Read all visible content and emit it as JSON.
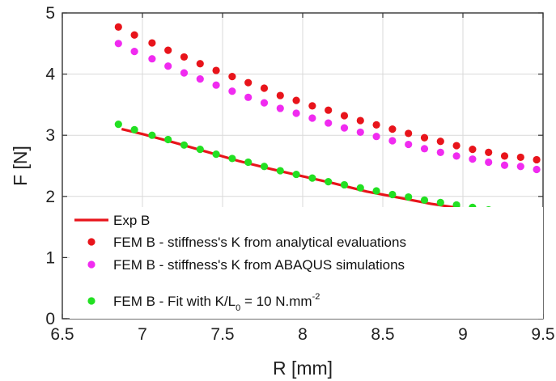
{
  "chart_data": {
    "type": "scatter",
    "xlabel": "R [mm]",
    "ylabel": "F [N]",
    "xlim": [
      6.5,
      9.5
    ],
    "ylim": [
      0,
      5
    ],
    "xticks": [
      "6.5",
      "7",
      "7.5",
      "8",
      "8.5",
      "9",
      "9.5"
    ],
    "yticks": [
      "0",
      "1",
      "2",
      "3",
      "4",
      "5"
    ],
    "grid": true,
    "legend_position": "bottom-left",
    "series": [
      {
        "name": "Exp B",
        "kind": "line",
        "color": "#e8141b",
        "x": [
          6.87,
          7.0,
          7.2,
          7.4,
          7.6,
          7.8,
          8.0,
          8.2,
          8.4,
          8.6,
          8.8,
          9.0,
          9.2,
          9.4
        ],
        "y": [
          3.1,
          3.02,
          2.88,
          2.73,
          2.58,
          2.45,
          2.33,
          2.21,
          2.08,
          1.98,
          1.88,
          1.8,
          1.72,
          1.62
        ]
      },
      {
        "name_parts": [
          "FEM B - stiffness's K from analytical evaluations"
        ],
        "kind": "points",
        "color": "#e8141b",
        "x": [
          6.85,
          6.95,
          7.06,
          7.16,
          7.26,
          7.36,
          7.46,
          7.56,
          7.66,
          7.76,
          7.86,
          7.96,
          8.06,
          8.16,
          8.26,
          8.36,
          8.46,
          8.56,
          8.66,
          8.76,
          8.86,
          8.96,
          9.06,
          9.16,
          9.26,
          9.36,
          9.46
        ],
        "y": [
          4.77,
          4.64,
          4.51,
          4.39,
          4.28,
          4.17,
          4.06,
          3.96,
          3.86,
          3.77,
          3.65,
          3.57,
          3.48,
          3.41,
          3.32,
          3.24,
          3.17,
          3.1,
          3.03,
          2.96,
          2.9,
          2.83,
          2.77,
          2.72,
          2.66,
          2.64,
          2.6
        ]
      },
      {
        "name_parts": [
          "FEM B - stiffness's K from ABAQUS simulations"
        ],
        "kind": "points",
        "color": "#f02bf0",
        "x": [
          6.85,
          6.95,
          7.06,
          7.16,
          7.26,
          7.36,
          7.46,
          7.56,
          7.66,
          7.76,
          7.86,
          7.96,
          8.06,
          8.16,
          8.26,
          8.36,
          8.46,
          8.56,
          8.66,
          8.76,
          8.86,
          8.96,
          9.06,
          9.16,
          9.26,
          9.36,
          9.46
        ],
        "y": [
          4.5,
          4.37,
          4.25,
          4.13,
          4.02,
          3.92,
          3.82,
          3.72,
          3.62,
          3.53,
          3.44,
          3.36,
          3.28,
          3.2,
          3.12,
          3.05,
          2.98,
          2.91,
          2.85,
          2.78,
          2.72,
          2.66,
          2.61,
          2.56,
          2.51,
          2.49,
          2.44
        ]
      },
      {
        "name_parts": [
          "FEM B - Fit with K/L",
          "0",
          " = 10 N.mm",
          "-2"
        ],
        "kind": "points",
        "color": "#22e022",
        "x": [
          6.85,
          6.95,
          7.06,
          7.16,
          7.26,
          7.36,
          7.46,
          7.56,
          7.66,
          7.76,
          7.86,
          7.96,
          8.06,
          8.16,
          8.26,
          8.36,
          8.46,
          8.56,
          8.66,
          8.76,
          8.86,
          8.96,
          9.06,
          9.16,
          9.26,
          9.36,
          9.46
        ],
        "y": [
          3.18,
          3.09,
          3.0,
          2.93,
          2.84,
          2.77,
          2.69,
          2.62,
          2.56,
          2.49,
          2.42,
          2.36,
          2.3,
          2.24,
          2.19,
          2.14,
          2.09,
          2.03,
          1.99,
          1.94,
          1.9,
          1.86,
          1.82,
          1.78,
          1.75,
          1.72,
          1.7
        ]
      }
    ]
  }
}
